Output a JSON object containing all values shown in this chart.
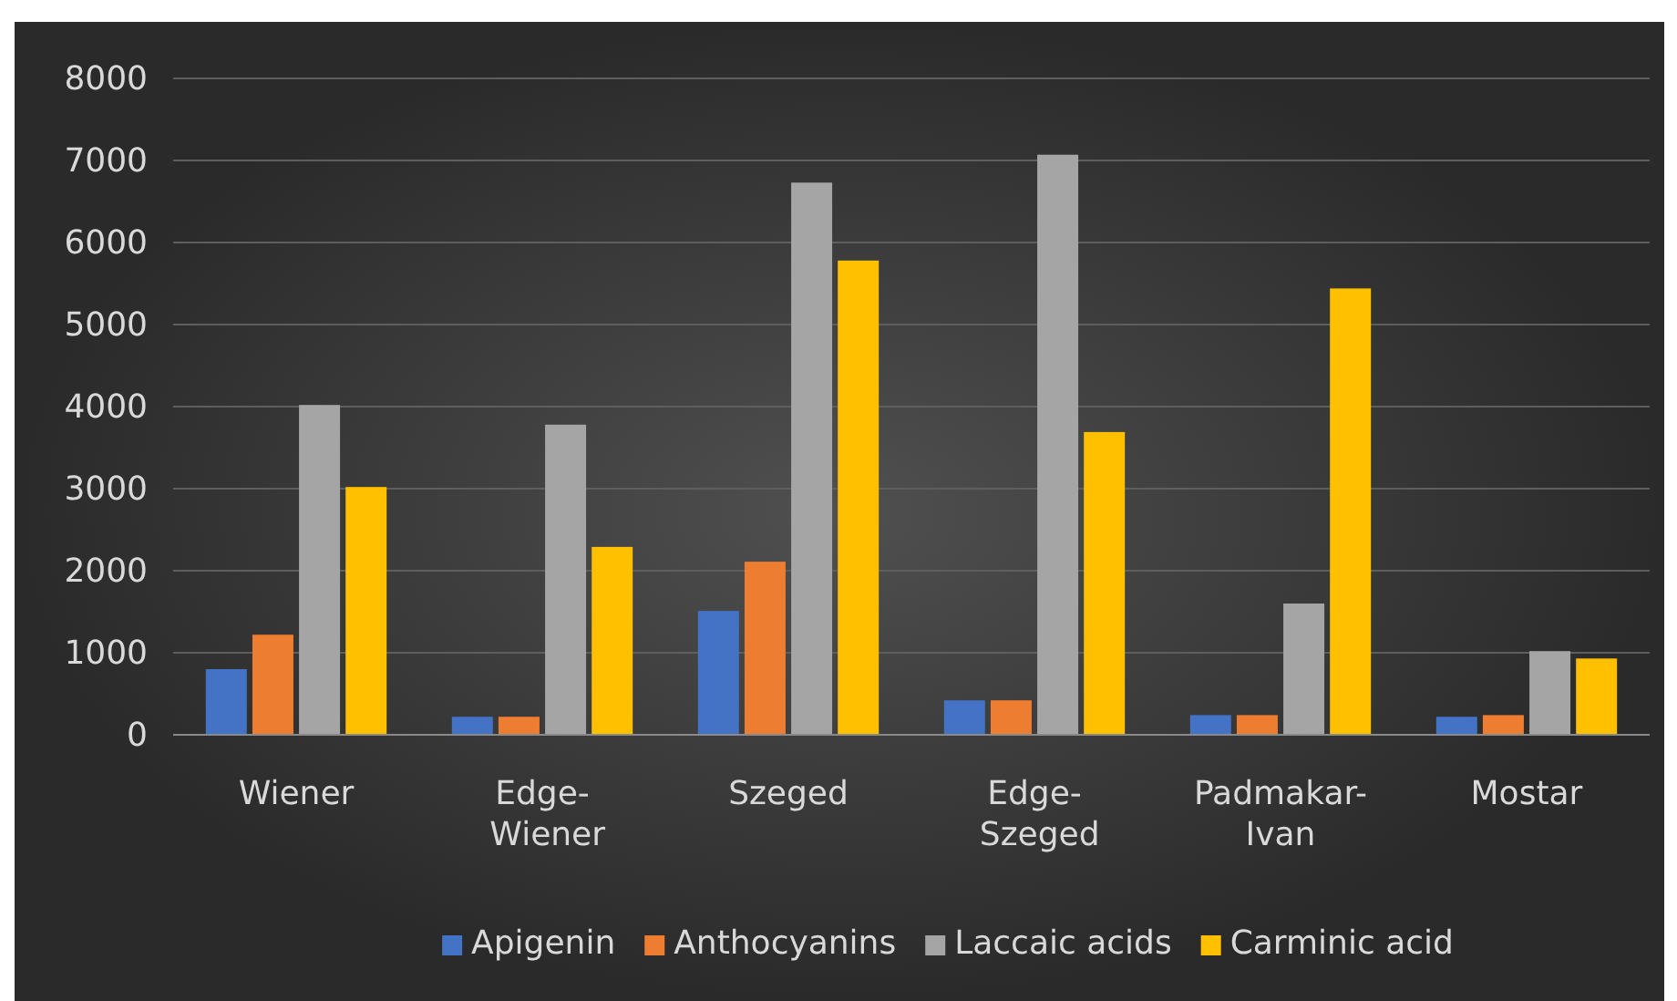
{
  "chart_data": {
    "type": "bar",
    "categories": [
      "Wiener",
      "Edge- Wiener",
      "Szeged",
      "Edge- Szeged",
      "Padmakar-Ivan",
      "Mostar"
    ],
    "series": [
      {
        "name": "Apigenin",
        "color": "#4472c4",
        "values": [
          800,
          220,
          1510,
          420,
          240,
          220
        ]
      },
      {
        "name": "Anthocyanins",
        "color": "#ed7d31",
        "values": [
          1220,
          220,
          2110,
          420,
          240,
          240
        ]
      },
      {
        "name": "Laccaic acids",
        "color": "#a5a5a5",
        "values": [
          4020,
          3780,
          6730,
          7070,
          1600,
          1020
        ]
      },
      {
        "name": "Carminic acid",
        "color": "#ffc000",
        "values": [
          3020,
          2290,
          5780,
          3690,
          5440,
          930
        ]
      }
    ],
    "ylim": [
      0,
      8000
    ],
    "yticks": [
      0,
      1000,
      2000,
      3000,
      4000,
      5000,
      6000,
      7000,
      8000
    ],
    "grid": "y",
    "legend": "bottom"
  }
}
